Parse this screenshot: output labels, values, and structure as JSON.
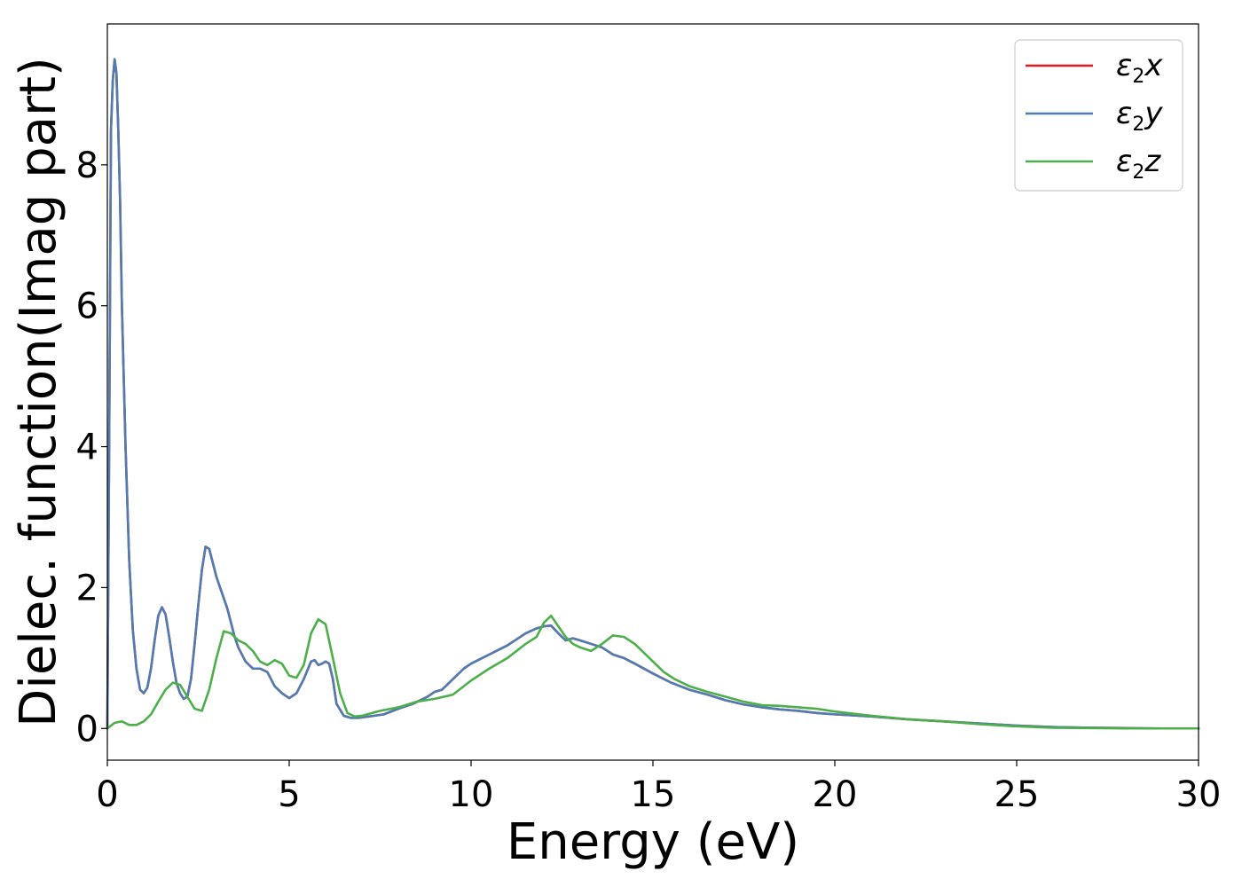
{
  "chart_data": {
    "type": "line",
    "xlabel": "Energy (eV)",
    "ylabel": "Dielec. function(Imag part)",
    "xlim": [
      0,
      30
    ],
    "ylim": [
      -0.45,
      10.0
    ],
    "xticks": [
      "0",
      "5",
      "10",
      "15",
      "20",
      "25",
      "30"
    ],
    "yticks": [
      "0",
      "2",
      "4",
      "6",
      "8"
    ],
    "legend_position": "top-right",
    "grid": false,
    "series": [
      {
        "name": "ε2x",
        "legend_symbol": "ε",
        "legend_sub": "2",
        "legend_suffix": "x",
        "color": "#e41a1c",
        "x": [
          0,
          0.05,
          0.1,
          0.15,
          0.2,
          0.25,
          0.3,
          0.35,
          0.4,
          0.5,
          0.6,
          0.7,
          0.8,
          0.9,
          1.0,
          1.1,
          1.2,
          1.3,
          1.4,
          1.5,
          1.6,
          1.7,
          1.8,
          1.9,
          2.0,
          2.1,
          2.2,
          2.3,
          2.4,
          2.5,
          2.6,
          2.7,
          2.8,
          2.9,
          3.0,
          3.1,
          3.2,
          3.3,
          3.4,
          3.5,
          3.6,
          3.8,
          4.0,
          4.2,
          4.4,
          4.6,
          4.8,
          5.0,
          5.2,
          5.4,
          5.6,
          5.7,
          5.8,
          5.9,
          6.0,
          6.1,
          6.2,
          6.3,
          6.5,
          6.7,
          6.9,
          7.2,
          7.6,
          8.0,
          8.4,
          8.8,
          9.0,
          9.2,
          9.4,
          9.6,
          9.8,
          10.0,
          10.5,
          11.0,
          11.5,
          11.8,
          12.0,
          12.2,
          12.4,
          12.6,
          12.8,
          13.0,
          13.3,
          13.6,
          13.9,
          14.2,
          14.5,
          15.0,
          15.5,
          16.0,
          16.5,
          17.0,
          17.5,
          18.0,
          18.5,
          19.0,
          19.5,
          20.0,
          21.0,
          22.0,
          23.0,
          24.0,
          25.0,
          26.0,
          27.0,
          28.0,
          29.0,
          30.0
        ],
        "y": [
          0,
          4.0,
          8.5,
          9.2,
          9.5,
          9.3,
          8.5,
          7.5,
          6.0,
          4.0,
          2.4,
          1.4,
          0.85,
          0.55,
          0.5,
          0.58,
          0.85,
          1.25,
          1.6,
          1.72,
          1.62,
          1.3,
          0.95,
          0.65,
          0.5,
          0.42,
          0.45,
          0.7,
          1.2,
          1.75,
          2.25,
          2.58,
          2.55,
          2.35,
          2.15,
          2.0,
          1.85,
          1.7,
          1.5,
          1.3,
          1.15,
          0.95,
          0.85,
          0.85,
          0.8,
          0.6,
          0.5,
          0.43,
          0.5,
          0.7,
          0.95,
          0.97,
          0.9,
          0.92,
          0.95,
          0.92,
          0.7,
          0.35,
          0.18,
          0.15,
          0.15,
          0.17,
          0.2,
          0.28,
          0.35,
          0.45,
          0.52,
          0.55,
          0.65,
          0.75,
          0.85,
          0.92,
          1.05,
          1.18,
          1.35,
          1.42,
          1.45,
          1.46,
          1.35,
          1.25,
          1.28,
          1.25,
          1.2,
          1.15,
          1.05,
          1.0,
          0.92,
          0.78,
          0.65,
          0.55,
          0.48,
          0.4,
          0.34,
          0.3,
          0.27,
          0.25,
          0.22,
          0.2,
          0.17,
          0.13,
          0.1,
          0.07,
          0.04,
          0.02,
          0.01,
          0.005,
          0,
          0
        ]
      },
      {
        "name": "ε2y",
        "legend_symbol": "ε",
        "legend_sub": "2",
        "legend_suffix": "y",
        "color": "#4f7db3",
        "x": [
          0,
          0.05,
          0.1,
          0.15,
          0.2,
          0.25,
          0.3,
          0.35,
          0.4,
          0.5,
          0.6,
          0.7,
          0.8,
          0.9,
          1.0,
          1.1,
          1.2,
          1.3,
          1.4,
          1.5,
          1.6,
          1.7,
          1.8,
          1.9,
          2.0,
          2.1,
          2.2,
          2.3,
          2.4,
          2.5,
          2.6,
          2.7,
          2.8,
          2.9,
          3.0,
          3.1,
          3.2,
          3.3,
          3.4,
          3.5,
          3.6,
          3.8,
          4.0,
          4.2,
          4.4,
          4.6,
          4.8,
          5.0,
          5.2,
          5.4,
          5.6,
          5.7,
          5.8,
          5.9,
          6.0,
          6.1,
          6.2,
          6.3,
          6.5,
          6.7,
          6.9,
          7.2,
          7.6,
          8.0,
          8.4,
          8.8,
          9.0,
          9.2,
          9.4,
          9.6,
          9.8,
          10.0,
          10.5,
          11.0,
          11.5,
          11.8,
          12.0,
          12.2,
          12.4,
          12.6,
          12.8,
          13.0,
          13.3,
          13.6,
          13.9,
          14.2,
          14.5,
          15.0,
          15.5,
          16.0,
          16.5,
          17.0,
          17.5,
          18.0,
          18.5,
          19.0,
          19.5,
          20.0,
          21.0,
          22.0,
          23.0,
          24.0,
          25.0,
          26.0,
          27.0,
          28.0,
          29.0,
          30.0
        ],
        "y": [
          0,
          4.0,
          8.5,
          9.2,
          9.5,
          9.3,
          8.5,
          7.5,
          6.0,
          4.0,
          2.4,
          1.4,
          0.85,
          0.55,
          0.5,
          0.58,
          0.85,
          1.25,
          1.6,
          1.72,
          1.62,
          1.3,
          0.95,
          0.65,
          0.5,
          0.42,
          0.45,
          0.7,
          1.2,
          1.75,
          2.25,
          2.58,
          2.55,
          2.35,
          2.15,
          2.0,
          1.85,
          1.7,
          1.5,
          1.3,
          1.15,
          0.95,
          0.85,
          0.85,
          0.8,
          0.6,
          0.5,
          0.43,
          0.5,
          0.7,
          0.95,
          0.97,
          0.9,
          0.92,
          0.95,
          0.92,
          0.7,
          0.35,
          0.18,
          0.15,
          0.15,
          0.17,
          0.2,
          0.28,
          0.35,
          0.45,
          0.52,
          0.55,
          0.65,
          0.75,
          0.85,
          0.92,
          1.05,
          1.18,
          1.35,
          1.42,
          1.45,
          1.46,
          1.35,
          1.25,
          1.28,
          1.25,
          1.2,
          1.15,
          1.05,
          1.0,
          0.92,
          0.78,
          0.65,
          0.55,
          0.48,
          0.4,
          0.34,
          0.3,
          0.27,
          0.25,
          0.22,
          0.2,
          0.17,
          0.13,
          0.1,
          0.07,
          0.04,
          0.02,
          0.01,
          0.005,
          0,
          0
        ]
      },
      {
        "name": "ε2z",
        "legend_symbol": "ε",
        "legend_sub": "2",
        "legend_suffix": "z",
        "color": "#4daf4a",
        "x": [
          0,
          0.2,
          0.4,
          0.6,
          0.8,
          1.0,
          1.2,
          1.4,
          1.6,
          1.8,
          2.0,
          2.2,
          2.4,
          2.6,
          2.8,
          3.0,
          3.2,
          3.4,
          3.6,
          3.8,
          4.0,
          4.2,
          4.4,
          4.6,
          4.8,
          5.0,
          5.2,
          5.4,
          5.6,
          5.8,
          6.0,
          6.2,
          6.4,
          6.6,
          6.8,
          7.0,
          7.5,
          8.0,
          8.5,
          9.0,
          9.5,
          10.0,
          10.5,
          11.0,
          11.5,
          11.8,
          12.0,
          12.2,
          12.4,
          12.6,
          12.8,
          13.0,
          13.3,
          13.6,
          13.9,
          14.2,
          14.5,
          14.8,
          15.0,
          15.3,
          15.6,
          16.0,
          16.5,
          17.0,
          17.5,
          18.0,
          18.5,
          19.0,
          19.5,
          20.0,
          21.0,
          22.0,
          23.0,
          24.0,
          25.0,
          26.0,
          27.0,
          28.0,
          29.0,
          30.0
        ],
        "y": [
          0,
          0.08,
          0.1,
          0.05,
          0.05,
          0.1,
          0.2,
          0.38,
          0.55,
          0.65,
          0.62,
          0.45,
          0.28,
          0.25,
          0.55,
          1.0,
          1.38,
          1.35,
          1.25,
          1.2,
          1.1,
          0.95,
          0.9,
          0.97,
          0.92,
          0.75,
          0.72,
          0.9,
          1.35,
          1.55,
          1.48,
          1.0,
          0.5,
          0.22,
          0.17,
          0.18,
          0.25,
          0.3,
          0.38,
          0.42,
          0.48,
          0.68,
          0.85,
          1.0,
          1.2,
          1.3,
          1.5,
          1.6,
          1.45,
          1.3,
          1.2,
          1.15,
          1.1,
          1.2,
          1.32,
          1.3,
          1.2,
          1.05,
          0.95,
          0.8,
          0.7,
          0.6,
          0.52,
          0.45,
          0.38,
          0.33,
          0.32,
          0.3,
          0.28,
          0.24,
          0.18,
          0.13,
          0.1,
          0.06,
          0.03,
          0.01,
          0.005,
          0,
          0,
          0
        ]
      }
    ]
  }
}
